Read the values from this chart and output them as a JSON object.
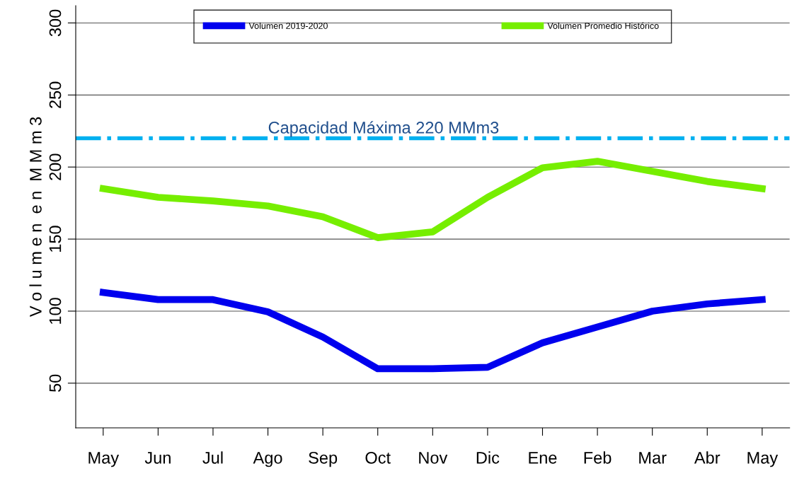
{
  "chart_data": {
    "type": "line",
    "ylabel": "V o l u m e n  e n  M M m 3",
    "categories": [
      "May",
      "Jun",
      "Jul",
      "Ago",
      "Sep",
      "Oct",
      "Nov",
      "Dic",
      "Ene",
      "Feb",
      "Mar",
      "Abr",
      "May"
    ],
    "series": [
      {
        "name": "Volumen 2019-2020",
        "color": "#0000ee",
        "values": [
          113,
          108,
          108,
          99.5,
          82,
          60,
          60,
          61,
          78,
          89,
          100,
          105,
          108
        ]
      },
      {
        "name": "Volumen Promedio Histórico",
        "color": "#76ee00",
        "values": [
          185,
          179,
          176.5,
          173,
          165.5,
          151,
          155,
          179,
          199.5,
          204,
          197,
          190,
          185
        ]
      }
    ],
    "ylim": [
      19,
      312
    ],
    "yticks": [
      50,
      100,
      150,
      200,
      250,
      300
    ],
    "grid": "y",
    "legend": "top",
    "line_style": "solid",
    "marker": "none",
    "ref_lines": [
      {
        "axis": "y",
        "value": 220,
        "label": "Capacidad Máxima 220 MMm3",
        "color": "#00b0f0",
        "line_style": "dashdot"
      }
    ]
  }
}
